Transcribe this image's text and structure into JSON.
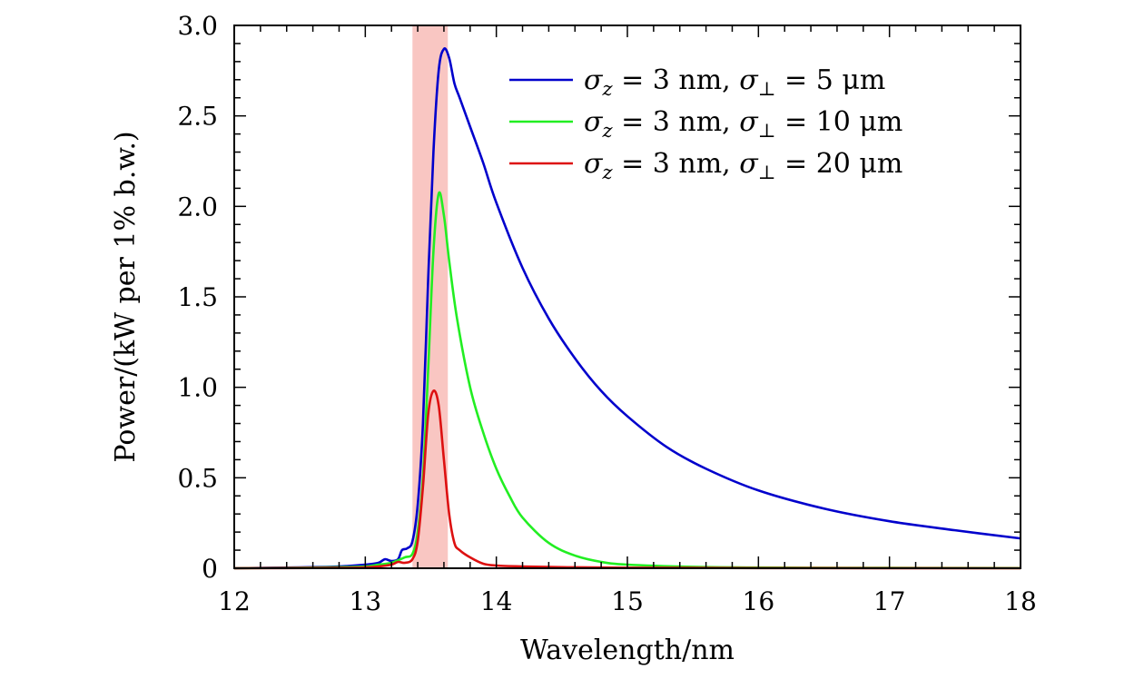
{
  "chart_data": {
    "type": "line",
    "title": "",
    "xlabel": "Wavelength/nm",
    "ylabel": "Power/(kW per 1% b.w.)",
    "xlim": [
      12,
      18
    ],
    "ylim": [
      0,
      3.0
    ],
    "xticks": [
      "12",
      "13",
      "14",
      "15",
      "16",
      "17",
      "18"
    ],
    "yticks": [
      "0",
      "0.5",
      "1.0",
      "1.5",
      "2.0",
      "2.5",
      "3.0"
    ],
    "grid": false,
    "legend_position": "top-right",
    "highlight_band": {
      "x_start": 13.36,
      "x_end": 13.63,
      "color": "#f9c6c2"
    },
    "series": [
      {
        "name": "σz = 3 nm, σ⊥ = 5 μm",
        "legend": {
          "sym": "σ",
          "sub": "z",
          "mid": " = 3 nm, ",
          "sym2": "σ",
          "sub2": "⊥",
          "tail": " = 5 μm"
        },
        "color": "#0000cc",
        "points": [
          [
            12.0,
            0.0
          ],
          [
            12.5,
            0.005
          ],
          [
            12.8,
            0.01
          ],
          [
            13.0,
            0.02
          ],
          [
            13.1,
            0.03
          ],
          [
            13.15,
            0.05
          ],
          [
            13.2,
            0.04
          ],
          [
            13.25,
            0.05
          ],
          [
            13.28,
            0.1
          ],
          [
            13.32,
            0.11
          ],
          [
            13.36,
            0.15
          ],
          [
            13.4,
            0.35
          ],
          [
            13.44,
            0.8
          ],
          [
            13.48,
            1.6
          ],
          [
            13.52,
            2.3
          ],
          [
            13.56,
            2.75
          ],
          [
            13.6,
            2.87
          ],
          [
            13.64,
            2.82
          ],
          [
            13.68,
            2.68
          ],
          [
            13.72,
            2.6
          ],
          [
            13.8,
            2.44
          ],
          [
            13.9,
            2.24
          ],
          [
            14.0,
            2.02
          ],
          [
            14.2,
            1.66
          ],
          [
            14.4,
            1.38
          ],
          [
            14.6,
            1.16
          ],
          [
            14.8,
            0.98
          ],
          [
            15.0,
            0.84
          ],
          [
            15.3,
            0.67
          ],
          [
            15.6,
            0.55
          ],
          [
            16.0,
            0.43
          ],
          [
            16.5,
            0.33
          ],
          [
            17.0,
            0.26
          ],
          [
            17.5,
            0.21
          ],
          [
            18.0,
            0.165
          ]
        ]
      },
      {
        "name": "σz = 3 nm, σ⊥ = 10 μm",
        "legend": {
          "sym": "σ",
          "sub": "z",
          "mid": " = 3 nm, ",
          "sym2": "σ",
          "sub2": "⊥",
          "tail": " = 10 μm"
        },
        "color": "#22ee22",
        "points": [
          [
            12.0,
            0.0
          ],
          [
            12.5,
            0.003
          ],
          [
            12.8,
            0.006
          ],
          [
            13.0,
            0.01
          ],
          [
            13.1,
            0.02
          ],
          [
            13.2,
            0.03
          ],
          [
            13.3,
            0.06
          ],
          [
            13.36,
            0.08
          ],
          [
            13.4,
            0.2
          ],
          [
            13.44,
            0.5
          ],
          [
            13.48,
            1.1
          ],
          [
            13.52,
            1.75
          ],
          [
            13.56,
            2.07
          ],
          [
            13.6,
            1.95
          ],
          [
            13.64,
            1.7
          ],
          [
            13.7,
            1.38
          ],
          [
            13.8,
            1.0
          ],
          [
            13.9,
            0.75
          ],
          [
            14.0,
            0.55
          ],
          [
            14.1,
            0.4
          ],
          [
            14.2,
            0.28
          ],
          [
            14.4,
            0.14
          ],
          [
            14.6,
            0.07
          ],
          [
            14.8,
            0.035
          ],
          [
            15.0,
            0.02
          ],
          [
            15.5,
            0.008
          ],
          [
            16.0,
            0.004
          ],
          [
            17.0,
            0.002
          ],
          [
            18.0,
            0.001
          ]
        ]
      },
      {
        "name": "σz = 3 nm, σ⊥ = 20 μm",
        "legend": {
          "sym": "σ",
          "sub": "z",
          "mid": " = 3 nm, ",
          "sym2": "σ",
          "sub2": "⊥",
          "tail": " = 20 μm"
        },
        "color": "#dd1111",
        "points": [
          [
            12.0,
            0.0
          ],
          [
            12.8,
            0.002
          ],
          [
            13.0,
            0.005
          ],
          [
            13.1,
            0.01
          ],
          [
            13.2,
            0.02
          ],
          [
            13.25,
            0.035
          ],
          [
            13.3,
            0.03
          ],
          [
            13.36,
            0.05
          ],
          [
            13.4,
            0.15
          ],
          [
            13.44,
            0.45
          ],
          [
            13.48,
            0.85
          ],
          [
            13.52,
            0.98
          ],
          [
            13.56,
            0.9
          ],
          [
            13.6,
            0.6
          ],
          [
            13.64,
            0.3
          ],
          [
            13.68,
            0.14
          ],
          [
            13.72,
            0.1
          ],
          [
            13.8,
            0.06
          ],
          [
            13.9,
            0.025
          ],
          [
            14.0,
            0.015
          ],
          [
            14.2,
            0.01
          ],
          [
            14.5,
            0.006
          ],
          [
            15.0,
            0.003
          ],
          [
            16.0,
            0.001
          ],
          [
            18.0,
            0.0
          ]
        ]
      }
    ]
  }
}
